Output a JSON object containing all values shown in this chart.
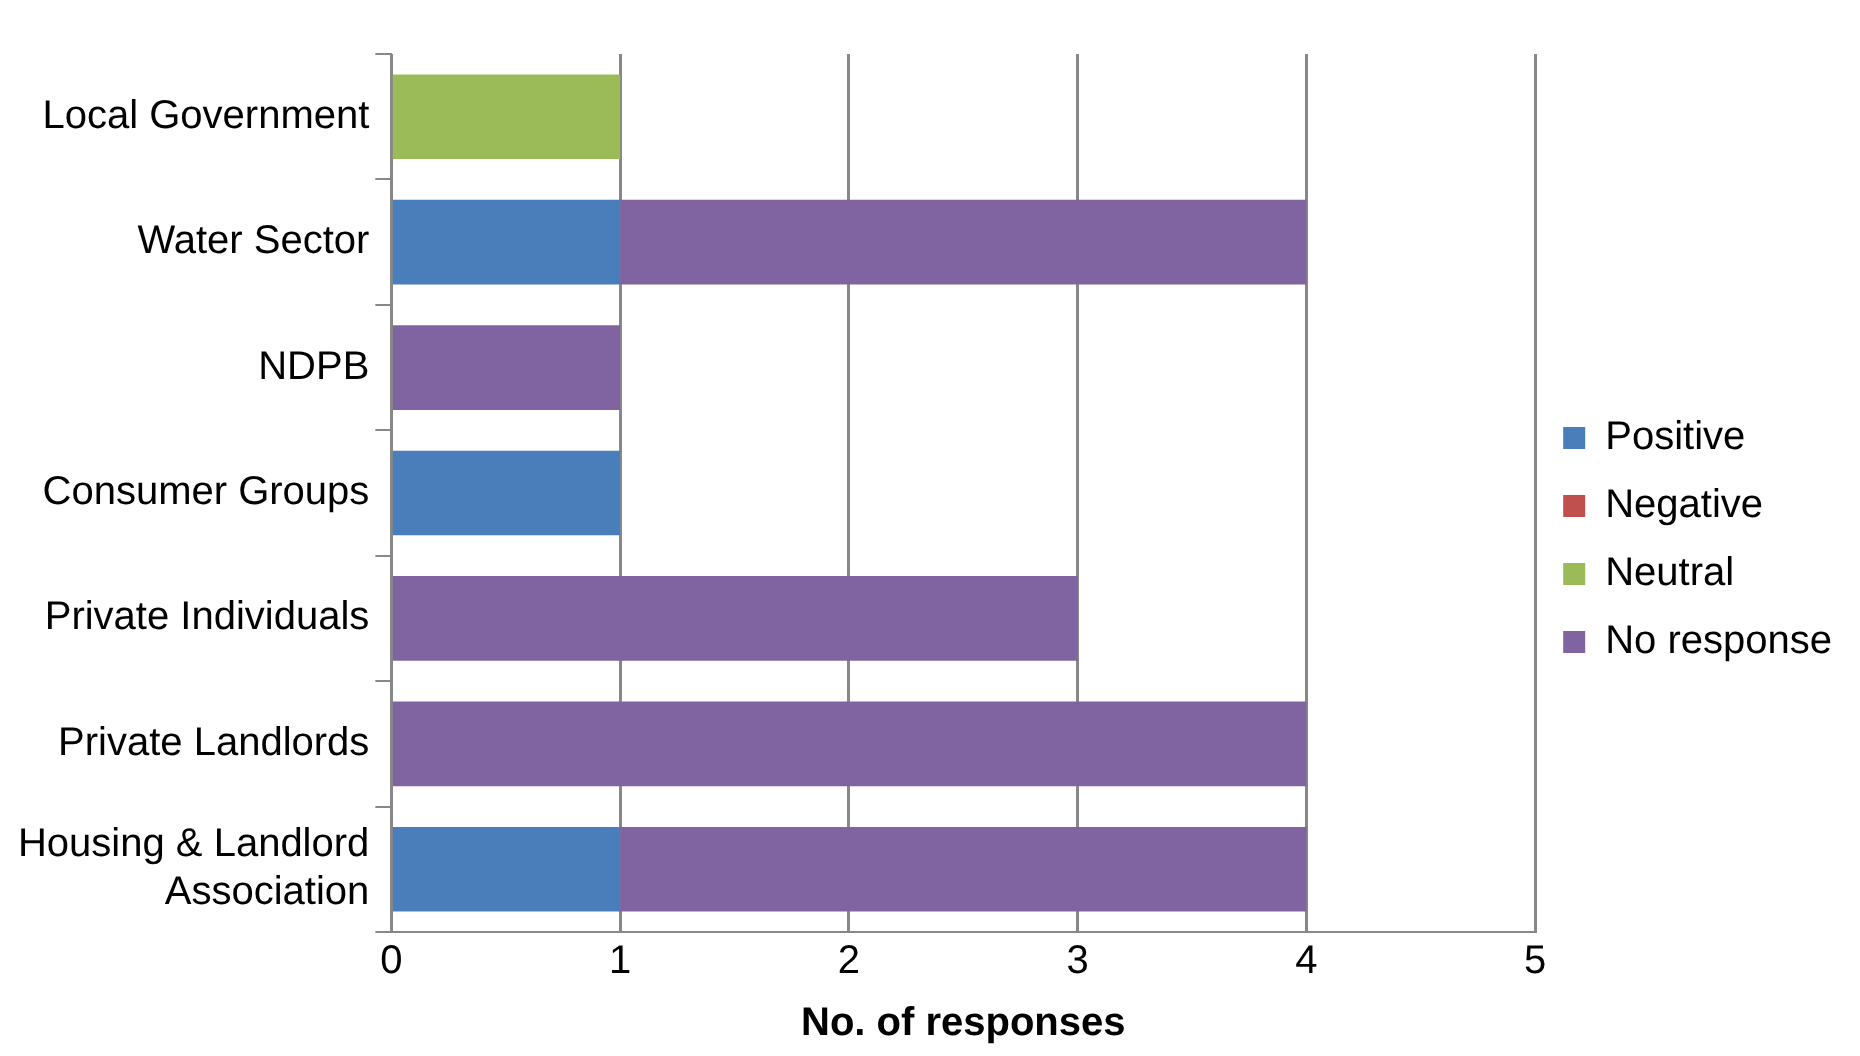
{
  "chart_data": {
    "type": "bar",
    "orientation": "horizontal",
    "stacked": true,
    "categories": [
      "Local Government",
      "Water Sector",
      "NDPB",
      "Consumer Groups",
      "Private Individuals",
      "Private Landlords",
      "Housing & Landlord Association"
    ],
    "series": [
      {
        "name": "Positive",
        "color": "#4a7ebb",
        "values": [
          0,
          1,
          0,
          1,
          0,
          0,
          1
        ]
      },
      {
        "name": "Negative",
        "color": "#c0504d",
        "values": [
          0,
          0,
          0,
          0,
          0,
          0,
          0
        ]
      },
      {
        "name": "Neutral",
        "color": "#9bbb59",
        "values": [
          1,
          0,
          0,
          0,
          0,
          0,
          0
        ]
      },
      {
        "name": "No response",
        "color": "#8064a2",
        "values": [
          0,
          3,
          1,
          0,
          3,
          4,
          3
        ]
      }
    ],
    "xlabel": "No. of responses",
    "xlim": [
      0,
      5
    ],
    "xticks": [
      0,
      1,
      2,
      3,
      4,
      5
    ],
    "grid": "x",
    "legend": "right"
  }
}
